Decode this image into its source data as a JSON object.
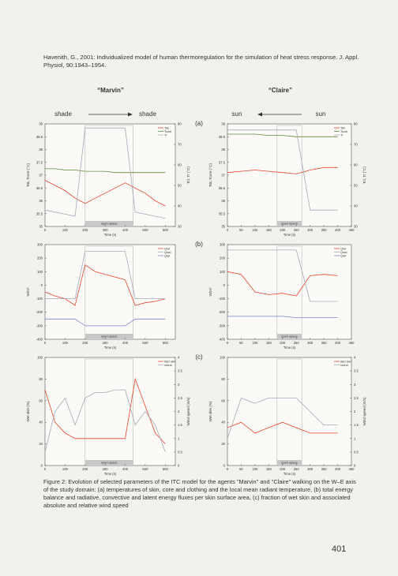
{
  "header": {
    "citation": "Havenith, G., 2001: Individualized model of human thermoregulation for the simulation of heat stress response. J. Appl. Physiol, 90:1943–1954."
  },
  "labels": {
    "agent_left": "“Marvin”",
    "agent_right": "“Claire”",
    "left_from": "shade",
    "left_to": "shade",
    "right_to": "sun",
    "right_from": "sun",
    "panels": [
      "(a)",
      "(b)",
      "(c)"
    ]
  },
  "chart_data": [
    {
      "type": "line",
      "xlabel": "Time (s)",
      "ylabel": "Tsk, Tcore (°C)",
      "y2label": "Tcl, Tr (°C)",
      "x": [
        0,
        50,
        100,
        150,
        200,
        250,
        300,
        350,
        400,
        450,
        500,
        550,
        600
      ],
      "xlim": [
        0,
        650
      ],
      "xticks": [
        0,
        100,
        200,
        300,
        400,
        500,
        600
      ],
      "ylim": [
        35,
        39
      ],
      "yticks": [
        35,
        35.5,
        36,
        36.5,
        37,
        37.5,
        38,
        38.5,
        39
      ],
      "y2lim": [
        30,
        80
      ],
      "y2ticks": [
        30,
        40,
        50,
        60,
        70,
        80
      ],
      "band": [
        200,
        440
      ],
      "band_label": "open space",
      "series": [
        {
          "name": "Tsk",
          "color": "#e8442e",
          "values": [
            36.8,
            36.6,
            36.4,
            36.1,
            35.9,
            36.1,
            36.3,
            36.5,
            36.7,
            36.5,
            36.3,
            36.0,
            35.8
          ]
        },
        {
          "name": "Tcore",
          "color": "#5f8a3a",
          "values": [
            37.25,
            37.25,
            37.2,
            37.2,
            37.15,
            37.15,
            37.15,
            37.1,
            37.1,
            37.1,
            37.1,
            37.1,
            37.1
          ]
        },
        {
          "name": "Tr",
          "color": "#a8a8b8",
          "axis": "y2",
          "values": [
            38,
            37,
            36,
            35,
            78,
            78,
            78,
            78,
            78,
            37,
            36,
            35,
            34
          ]
        }
      ]
    },
    {
      "type": "line",
      "xlabel": "Time (s)",
      "ylabel": "Tsk, Tcore (°C)",
      "y2label": "Tcl, Tr (°C)",
      "x": [
        0,
        50,
        100,
        150,
        200,
        250,
        300,
        350,
        400
      ],
      "xlim": [
        0,
        450
      ],
      "xticks": [
        0,
        50,
        100,
        150,
        200,
        250,
        300,
        350,
        400,
        450
      ],
      "ylim": [
        35,
        39
      ],
      "yticks": [
        35,
        35.5,
        36,
        36.5,
        37,
        37.5,
        38,
        38.5,
        39
      ],
      "y2lim": [
        30,
        80
      ],
      "y2ticks": [
        30,
        40,
        50,
        60,
        70,
        80
      ],
      "band": [
        180,
        270
      ],
      "band_label": "open space",
      "series": [
        {
          "name": "Tsk",
          "color": "#e8442e",
          "values": [
            37.1,
            37.15,
            37.2,
            37.15,
            37.1,
            37.05,
            37.2,
            37.3,
            37.3
          ]
        },
        {
          "name": "Tcore",
          "color": "#5f8a3a",
          "values": [
            38.6,
            38.6,
            38.6,
            38.55,
            38.55,
            38.5,
            38.5,
            38.5,
            38.5
          ]
        },
        {
          "name": "Tr",
          "color": "#a8a8b8",
          "axis": "y2",
          "values": [
            77,
            77,
            77,
            77,
            77,
            77,
            38,
            38,
            38
          ]
        }
      ]
    },
    {
      "type": "line",
      "xlabel": "Time (s)",
      "ylabel": "W/m²",
      "x": [
        0,
        50,
        100,
        150,
        200,
        250,
        300,
        350,
        400,
        450,
        500,
        550,
        600
      ],
      "xlim": [
        0,
        650
      ],
      "xticks": [
        0,
        100,
        200,
        300,
        400,
        500,
        600
      ],
      "ylim": [
        -400,
        300
      ],
      "yticks": [
        -400,
        -300,
        -200,
        -100,
        0,
        100,
        200,
        300
      ],
      "band": [
        200,
        440
      ],
      "band_label": "open space",
      "series": [
        {
          "name": "Qtot",
          "color": "#e8442e",
          "values": [
            -50,
            -80,
            -100,
            -150,
            150,
            100,
            80,
            60,
            40,
            -150,
            -130,
            -120,
            -100
          ]
        },
        {
          "name": "Qrad",
          "color": "#a8a8b8",
          "values": [
            -100,
            -100,
            -100,
            -100,
            250,
            250,
            250,
            250,
            250,
            -100,
            -100,
            -100,
            -100
          ]
        },
        {
          "name": "Qlat",
          "color": "#7a86c8",
          "values": [
            -250,
            -250,
            -250,
            -250,
            -300,
            -300,
            -300,
            -300,
            -300,
            -250,
            -250,
            -250,
            -250
          ]
        }
      ]
    },
    {
      "type": "line",
      "xlabel": "Time (s)",
      "ylabel": "W/m²",
      "x": [
        0,
        50,
        100,
        150,
        200,
        250,
        300,
        350,
        400
      ],
      "xlim": [
        0,
        450
      ],
      "xticks": [
        0,
        50,
        100,
        150,
        200,
        250,
        300,
        350,
        400,
        450
      ],
      "ylim": [
        -400,
        300
      ],
      "yticks": [
        -400,
        -300,
        -200,
        -100,
        0,
        100,
        200,
        300
      ],
      "band": [
        180,
        270
      ],
      "band_label": "open space",
      "series": [
        {
          "name": "Qtot",
          "color": "#e8442e",
          "values": [
            100,
            80,
            -50,
            -70,
            -60,
            -80,
            70,
            80,
            70
          ]
        },
        {
          "name": "Qrad",
          "color": "#a8a8b8",
          "values": [
            260,
            260,
            260,
            260,
            260,
            260,
            -120,
            -120,
            -120
          ]
        },
        {
          "name": "Qlat",
          "color": "#7a86c8",
          "values": [
            -230,
            -230,
            -230,
            -230,
            -230,
            -240,
            -240,
            -240,
            -240
          ]
        }
      ]
    },
    {
      "type": "line",
      "xlabel": "Time (s)",
      "ylabel": "Wet skin (%)",
      "y2label": "Wind speed (m/s)",
      "x": [
        0,
        50,
        100,
        150,
        200,
        250,
        300,
        350,
        400,
        450,
        500,
        550,
        600
      ],
      "xlim": [
        0,
        650
      ],
      "xticks": [
        0,
        100,
        200,
        300,
        400,
        500,
        600
      ],
      "ylim": [
        0,
        100
      ],
      "yticks": [
        0,
        20,
        40,
        60,
        80,
        100
      ],
      "y2lim": [
        0,
        4
      ],
      "y2ticks": [
        0,
        0.5,
        1,
        1.5,
        2,
        2.5,
        3,
        3.5,
        4
      ],
      "band": [
        200,
        440
      ],
      "band_label": "open space",
      "series": [
        {
          "name": "Wet skin",
          "color": "#e8442e",
          "values": [
            70,
            40,
            30,
            25,
            25,
            25,
            25,
            25,
            25,
            80,
            55,
            30,
            20
          ]
        },
        {
          "name": "vwind",
          "color": "#a8a8b8",
          "axis": "y2",
          "values": [
            0.5,
            2,
            2.5,
            1.5,
            2.5,
            2.7,
            2.7,
            2.8,
            2.8,
            1.5,
            2,
            1.5,
            0.5
          ]
        }
      ]
    },
    {
      "type": "line",
      "xlabel": "Time (s)",
      "ylabel": "Wet skin (%)",
      "y2label": "Wind speed (m/s)",
      "x": [
        0,
        50,
        100,
        150,
        200,
        250,
        300,
        350,
        400
      ],
      "xlim": [
        0,
        450
      ],
      "xticks": [
        0,
        50,
        100,
        150,
        200,
        250,
        300,
        350,
        400,
        450
      ],
      "ylim": [
        0,
        100
      ],
      "yticks": [
        0,
        20,
        40,
        60,
        80,
        100
      ],
      "y2lim": [
        0,
        4
      ],
      "y2ticks": [
        0,
        0.5,
        1,
        1.5,
        2,
        2.5,
        3,
        3.5,
        4
      ],
      "band": [
        180,
        270
      ],
      "band_label": "open space",
      "series": [
        {
          "name": "Wet skin",
          "color": "#e8442e",
          "values": [
            35,
            40,
            30,
            35,
            40,
            35,
            30,
            30,
            30
          ]
        },
        {
          "name": "vwind",
          "color": "#a8a8b8",
          "axis": "y2",
          "values": [
            1,
            2.5,
            2.3,
            2.5,
            2.5,
            2.5,
            2,
            1.5,
            1.5
          ]
        }
      ]
    }
  ],
  "caption": "Figure 2: Evolution of selected parameters of the ITC model for the agents \"Marvin\" and \"Claire\" walking on the W–E axis of the study domain: (a) temperatures of skin, core and clothing and the local mean radiant temperature, (b) total energy balance and radiative, convective and latent energy fluxes per skin surface area, (c) fraction of wet skin and associated absolute and relative wind speed",
  "page_number": "401"
}
